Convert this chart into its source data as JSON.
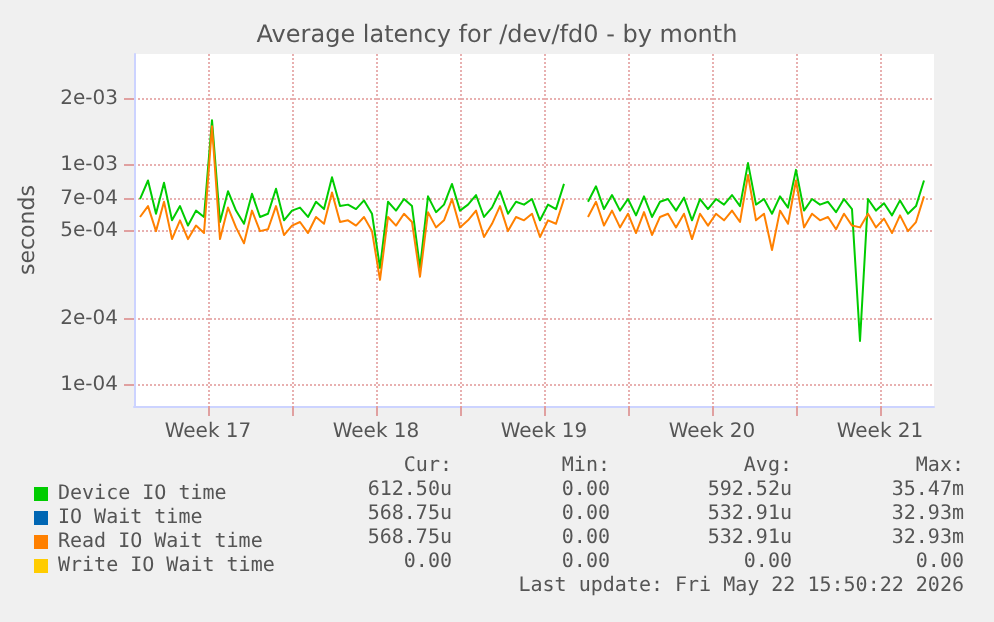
{
  "chart_data": {
    "type": "line",
    "title": "Average latency for /dev/fd0 - by month",
    "ylabel": "seconds",
    "x": [
      "2026-04-20T16:00",
      "2026-04-21T00:00",
      "2026-04-21T08:00",
      "2026-04-21T16:00",
      "2026-04-22T00:00",
      "2026-04-22T08:00",
      "2026-04-22T16:00",
      "2026-04-23T00:00",
      "2026-04-23T08:00",
      "2026-04-23T16:00",
      "2026-04-24T00:00",
      "2026-04-24T08:00",
      "2026-04-24T16:00",
      "2026-04-25T00:00",
      "2026-04-25T08:00",
      "2026-04-25T16:00",
      "2026-04-26T00:00",
      "2026-04-26T08:00",
      "2026-04-26T16:00",
      "2026-04-27T00:00",
      "2026-04-27T08:00",
      "2026-04-27T16:00",
      "2026-04-28T00:00",
      "2026-04-28T08:00",
      "2026-04-28T16:00",
      "2026-04-29T00:00",
      "2026-04-29T08:00",
      "2026-04-29T16:00",
      "2026-04-30T00:00",
      "2026-04-30T08:00",
      "2026-04-30T16:00",
      "2026-05-01T00:00",
      "2026-05-01T08:00",
      "2026-05-01T16:00",
      "2026-05-02T00:00",
      "2026-05-02T08:00",
      "2026-05-02T16:00",
      "2026-05-03T00:00",
      "2026-05-03T08:00",
      "2026-05-03T16:00",
      "2026-05-04T00:00",
      "2026-05-04T08:00",
      "2026-05-04T16:00",
      "2026-05-05T00:00",
      "2026-05-05T08:00",
      "2026-05-05T16:00",
      "2026-05-06T00:00",
      "2026-05-06T08:00",
      "2026-05-06T16:00",
      "2026-05-07T00:00",
      "2026-05-07T08:00",
      "2026-05-07T16:00",
      "2026-05-08T00:00",
      "2026-05-08T08:00",
      "2026-05-08T16:00",
      "2026-05-09T00:00",
      "2026-05-09T08:00",
      "2026-05-09T16:00",
      "2026-05-10T00:00",
      "2026-05-10T08:00",
      "2026-05-10T16:00",
      "2026-05-11T00:00",
      "2026-05-11T08:00",
      "2026-05-11T16:00",
      "2026-05-12T00:00",
      "2026-05-12T08:00",
      "2026-05-12T16:00",
      "2026-05-13T00:00",
      "2026-05-13T08:00",
      "2026-05-13T16:00",
      "2026-05-14T00:00",
      "2026-05-14T08:00",
      "2026-05-14T16:00",
      "2026-05-15T00:00",
      "2026-05-15T08:00",
      "2026-05-15T16:00",
      "2026-05-16T00:00",
      "2026-05-16T08:00",
      "2026-05-16T16:00",
      "2026-05-17T00:00",
      "2026-05-17T08:00",
      "2026-05-17T16:00",
      "2026-05-18T00:00",
      "2026-05-18T08:00",
      "2026-05-18T16:00",
      "2026-05-19T00:00",
      "2026-05-19T08:00",
      "2026-05-19T16:00",
      "2026-05-20T00:00",
      "2026-05-20T08:00",
      "2026-05-20T16:00",
      "2026-05-21T00:00",
      "2026-05-21T08:00",
      "2026-05-21T16:00",
      "2026-05-22T00:00",
      "2026-05-22T08:00",
      "2026-05-22T16:00",
      "2026-05-23T00:00",
      "2026-05-23T08:00"
    ],
    "series": [
      {
        "name": "Device IO time",
        "color": "#00cc00",
        "values": [
          0.0007,
          0.00085,
          0.0006,
          0.00083,
          0.00056,
          0.00065,
          0.00053,
          0.00062,
          0.00058,
          0.0016,
          0.00055,
          0.00076,
          0.00062,
          0.00054,
          0.00074,
          0.00058,
          0.0006,
          0.00078,
          0.00056,
          0.00062,
          0.00064,
          0.00058,
          0.00068,
          0.00063,
          0.00088,
          0.00065,
          0.00066,
          0.00063,
          0.00069,
          0.0006,
          0.00034,
          0.00068,
          0.00062,
          0.0007,
          0.00065,
          0.00034,
          0.00072,
          0.00061,
          0.00066,
          0.00082,
          0.00062,
          0.00066,
          0.00073,
          0.00058,
          0.00064,
          0.00076,
          0.0006,
          0.00068,
          0.00066,
          0.0007,
          0.00056,
          0.00066,
          0.00063,
          0.00082,
          null,
          null,
          0.00068,
          0.0008,
          0.00063,
          0.00073,
          0.00062,
          0.0007,
          0.00059,
          0.00072,
          0.00058,
          0.00068,
          0.0007,
          0.00062,
          0.00071,
          0.00056,
          0.0007,
          0.00063,
          0.0007,
          0.00066,
          0.00073,
          0.00065,
          0.00102,
          0.00066,
          0.0007,
          0.0006,
          0.00072,
          0.00064,
          0.00095,
          0.00062,
          0.0007,
          0.00066,
          0.00068,
          0.00061,
          0.0007,
          0.00063,
          0.000158,
          0.0007,
          0.00062,
          0.00067,
          0.00059,
          0.00069,
          0.0006,
          0.00065,
          0.00085
        ]
      },
      {
        "name": "IO Wait time",
        "color": "#0066b3",
        "values": [
          null,
          null,
          null,
          null,
          null,
          null,
          null,
          null,
          null,
          null,
          null,
          null,
          null,
          null,
          null,
          null,
          null,
          null,
          null,
          null,
          null,
          null,
          null,
          null,
          null,
          null,
          null,
          null,
          null,
          null,
          null,
          null,
          null,
          null,
          null,
          null,
          null,
          null,
          null,
          null,
          null,
          null,
          null,
          null,
          null,
          null,
          null,
          null,
          null,
          null,
          null,
          null,
          null,
          null,
          null,
          null,
          null,
          null,
          null,
          null,
          null,
          null,
          null,
          null,
          null,
          null,
          null,
          null,
          null,
          null,
          null,
          null,
          null,
          null,
          null,
          null,
          null,
          null,
          null,
          null,
          null,
          null,
          null,
          null,
          null,
          null,
          null,
          null,
          null,
          null,
          null,
          null,
          null,
          null,
          null,
          null,
          null,
          null,
          null
        ]
      },
      {
        "name": "Read IO Wait time",
        "color": "#ff8000",
        "values": [
          0.00058,
          0.00065,
          0.0005,
          0.00068,
          0.00046,
          0.00056,
          0.00046,
          0.00053,
          0.00049,
          0.0015,
          0.00046,
          0.00064,
          0.00052,
          0.00044,
          0.00062,
          0.0005,
          0.00051,
          0.00065,
          0.00048,
          0.00053,
          0.00055,
          0.00049,
          0.00058,
          0.00054,
          0.00075,
          0.00055,
          0.00056,
          0.00053,
          0.00058,
          0.0005,
          0.0003,
          0.00058,
          0.00053,
          0.0006,
          0.00055,
          0.00031,
          0.00061,
          0.00052,
          0.00056,
          0.0007,
          0.00052,
          0.00056,
          0.00062,
          0.00047,
          0.00054,
          0.00065,
          0.0005,
          0.00058,
          0.00056,
          0.0006,
          0.00047,
          0.00056,
          0.00054,
          0.0007,
          null,
          null,
          0.00058,
          0.00068,
          0.00053,
          0.00062,
          0.00052,
          0.0006,
          0.00049,
          0.00061,
          0.00048,
          0.00058,
          0.0006,
          0.00052,
          0.0006,
          0.00046,
          0.0006,
          0.00053,
          0.0006,
          0.00056,
          0.00062,
          0.00055,
          0.0009,
          0.00056,
          0.0006,
          0.00041,
          0.00062,
          0.00054,
          0.00085,
          0.00052,
          0.0006,
          0.00056,
          0.00058,
          0.00051,
          0.0006,
          0.00053,
          0.00052,
          0.0006,
          0.00052,
          0.00057,
          0.00049,
          0.00059,
          0.0005,
          0.00055,
          0.00072
        ]
      },
      {
        "name": "Write IO Wait time",
        "color": "#ffcc00",
        "values": [
          null,
          null,
          null,
          null,
          null,
          null,
          null,
          null,
          null,
          null,
          null,
          null,
          null,
          null,
          null,
          null,
          null,
          null,
          null,
          null,
          null,
          null,
          null,
          null,
          null,
          null,
          null,
          null,
          null,
          null,
          null,
          null,
          null,
          null,
          null,
          null,
          null,
          null,
          null,
          null,
          null,
          null,
          null,
          null,
          null,
          null,
          null,
          null,
          null,
          null,
          null,
          null,
          null,
          null,
          null,
          null,
          null,
          null,
          null,
          null,
          null,
          null,
          null,
          null,
          null,
          null,
          null,
          null,
          null,
          null,
          null,
          null,
          null,
          null,
          null,
          null,
          null,
          null,
          null,
          null,
          null,
          null,
          null,
          null,
          null,
          null,
          null,
          null,
          null,
          null,
          null,
          null,
          null,
          null,
          null,
          null,
          null,
          null,
          null
        ]
      }
    ],
    "xlim": [
      "2026-04-20T10:00",
      "2026-05-23T18:00"
    ],
    "xticks": [
      {
        "value": "2026-04-23T12:00",
        "label": "Week 17"
      },
      {
        "value": "2026-04-27",
        "label": null
      },
      {
        "value": "2026-04-30T12:00",
        "label": "Week 18"
      },
      {
        "value": "2026-05-04",
        "label": null
      },
      {
        "value": "2026-05-07T12:00",
        "label": "Week 19"
      },
      {
        "value": "2026-05-11",
        "label": null
      },
      {
        "value": "2026-05-14T12:00",
        "label": "Week 20"
      },
      {
        "value": "2026-05-18",
        "label": null
      },
      {
        "value": "2026-05-21T12:00",
        "label": "Week 21"
      }
    ],
    "ylim": [
      8e-05,
      0.0032
    ],
    "yticks": [
      {
        "value": 0.0001,
        "label": "1e-04"
      },
      {
        "value": 0.0002,
        "label": "2e-04"
      },
      {
        "value": 0.0005,
        "label": "5e-04"
      },
      {
        "value": 0.0007,
        "label": "7e-04"
      },
      {
        "value": 0.001,
        "label": "1e-03"
      },
      {
        "value": 0.002,
        "label": "2e-03"
      }
    ],
    "log": true,
    "grid": true,
    "legend": "bottom left",
    "annotations": [
      "Cur:",
      "Min:",
      "Avg:",
      "Max:",
      "612.50u",
      "0.00",
      "592.52u",
      "35.47m",
      "568.75u",
      "0.00",
      "532.91u",
      "32.93m",
      "568.75u",
      "0.00",
      "532.91u",
      "32.93m",
      "0.00",
      "0.00",
      "0.00",
      "0.00",
      "Last update: Fri May 22 15:50:22 2026"
    ]
  }
}
